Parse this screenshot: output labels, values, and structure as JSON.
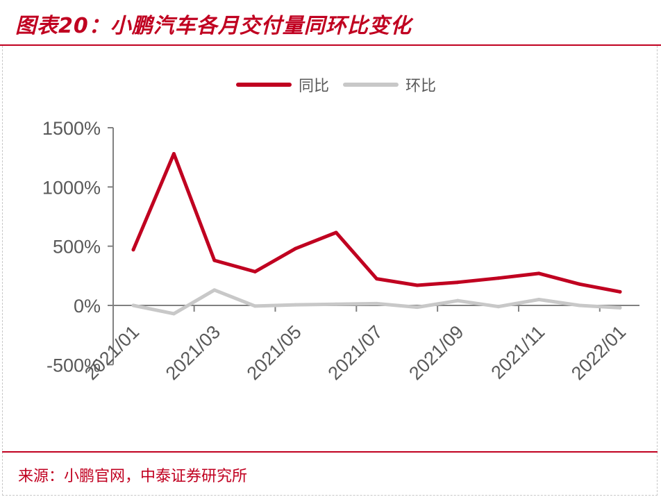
{
  "header": {
    "title": "图表20：小鹏汽车各月交付量同环比变化"
  },
  "footer": {
    "source": "来源：小鹏官网，中泰证券研究所"
  },
  "colors": {
    "accent": "#c00020",
    "yoy": "#c00020",
    "mom": "#c8c8c8",
    "axis": "#808080",
    "text": "#595959"
  },
  "chart_data": {
    "type": "line",
    "title": "",
    "xlabel": "",
    "ylabel": "",
    "x": [
      "2021/01",
      "2021/02",
      "2021/03",
      "2021/04",
      "2021/05",
      "2021/06",
      "2021/07",
      "2021/08",
      "2021/09",
      "2021/10",
      "2021/11",
      "2021/12",
      "2022/01"
    ],
    "x_tick_labels": [
      "2021/01",
      "2021/03",
      "2021/05",
      "2021/07",
      "2021/09",
      "2021/11",
      "2022/01"
    ],
    "y_tick_labels": [
      "1500%",
      "1000%",
      "500%",
      "0%",
      "-500%"
    ],
    "y_ticks": [
      1500,
      1000,
      500,
      0,
      -500
    ],
    "ylim": [
      -500,
      1500
    ],
    "grid": false,
    "legend_position": "top-center",
    "series": [
      {
        "name": "同比",
        "values": [
          470,
          1280,
          380,
          285,
          480,
          615,
          225,
          170,
          195,
          230,
          270,
          180,
          115
        ]
      },
      {
        "name": "环比",
        "values": [
          0,
          -70,
          130,
          -5,
          5,
          10,
          15,
          -15,
          40,
          -10,
          50,
          0,
          -20
        ]
      }
    ]
  }
}
